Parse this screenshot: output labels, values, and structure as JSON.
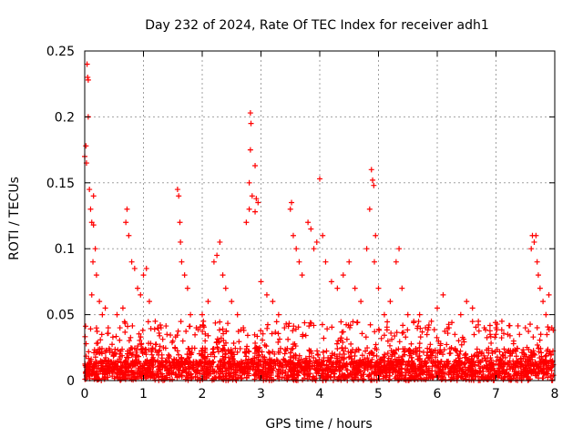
{
  "chart_data": {
    "type": "scatter",
    "title": "Day 232 of 2024, Rate Of TEC Index for receiver adh1",
    "xlabel": "GPS time / hours",
    "ylabel": "ROTI / TECUs",
    "xlim": [
      0,
      8
    ],
    "ylim": [
      0,
      0.25
    ],
    "x_ticks": [
      0,
      1,
      2,
      3,
      4,
      5,
      6,
      7,
      8
    ],
    "x_tick_labels": [
      "0",
      "1",
      "2",
      "3",
      "4",
      "5",
      "6",
      "7",
      "8"
    ],
    "y_ticks": [
      0,
      0.05,
      0.1,
      0.15,
      0.2,
      0.25
    ],
    "y_tick_labels": [
      "0",
      "0.05",
      "0.1",
      "0.15",
      "0.2",
      "0.25"
    ],
    "grid": true,
    "marker": "+",
    "series": [
      {
        "name": "ROTI",
        "color": "#ff0000",
        "description_points": "dense scatter; baseline 0-0.03 TECUs throughout",
        "points": [
          [
            0.0,
            0.17
          ],
          [
            0.02,
            0.178
          ],
          [
            0.04,
            0.24
          ],
          [
            0.05,
            0.23
          ],
          [
            0.06,
            0.228
          ],
          [
            0.06,
            0.2
          ],
          [
            0.03,
            0.165
          ],
          [
            0.08,
            0.145
          ],
          [
            0.1,
            0.13
          ],
          [
            0.12,
            0.12
          ],
          [
            0.15,
            0.14
          ],
          [
            0.15,
            0.118
          ],
          [
            0.18,
            0.1
          ],
          [
            0.14,
            0.09
          ],
          [
            0.12,
            0.065
          ],
          [
            0.2,
            0.08
          ],
          [
            0.25,
            0.06
          ],
          [
            0.3,
            0.05
          ],
          [
            0.35,
            0.055
          ],
          [
            0.4,
            0.04
          ],
          [
            0.55,
            0.05
          ],
          [
            0.6,
            0.04
          ],
          [
            0.65,
            0.055
          ],
          [
            0.7,
            0.12
          ],
          [
            0.72,
            0.13
          ],
          [
            0.75,
            0.11
          ],
          [
            0.8,
            0.09
          ],
          [
            0.85,
            0.085
          ],
          [
            0.9,
            0.07
          ],
          [
            0.95,
            0.065
          ],
          [
            1.0,
            0.08
          ],
          [
            1.05,
            0.085
          ],
          [
            1.1,
            0.06
          ],
          [
            1.2,
            0.045
          ],
          [
            1.3,
            0.04
          ],
          [
            1.4,
            0.035
          ],
          [
            1.5,
            0.03
          ],
          [
            1.58,
            0.145
          ],
          [
            1.6,
            0.14
          ],
          [
            1.62,
            0.12
          ],
          [
            1.63,
            0.105
          ],
          [
            1.65,
            0.09
          ],
          [
            1.7,
            0.08
          ],
          [
            1.75,
            0.07
          ],
          [
            1.8,
            0.05
          ],
          [
            1.9,
            0.04
          ],
          [
            2.0,
            0.05
          ],
          [
            2.1,
            0.06
          ],
          [
            2.2,
            0.09
          ],
          [
            2.25,
            0.095
          ],
          [
            2.3,
            0.105
          ],
          [
            2.35,
            0.08
          ],
          [
            2.4,
            0.07
          ],
          [
            2.5,
            0.06
          ],
          [
            2.6,
            0.05
          ],
          [
            2.7,
            0.04
          ],
          [
            2.75,
            0.12
          ],
          [
            2.8,
            0.13
          ],
          [
            2.82,
            0.203
          ],
          [
            2.83,
            0.195
          ],
          [
            2.82,
            0.175
          ],
          [
            2.8,
            0.15
          ],
          [
            2.85,
            0.14
          ],
          [
            2.9,
            0.163
          ],
          [
            2.92,
            0.138
          ],
          [
            2.95,
            0.135
          ],
          [
            2.9,
            0.128
          ],
          [
            3.0,
            0.075
          ],
          [
            3.1,
            0.065
          ],
          [
            3.2,
            0.06
          ],
          [
            3.3,
            0.05
          ],
          [
            3.4,
            0.04
          ],
          [
            3.5,
            0.13
          ],
          [
            3.52,
            0.135
          ],
          [
            3.55,
            0.11
          ],
          [
            3.6,
            0.1
          ],
          [
            3.65,
            0.09
          ],
          [
            3.7,
            0.08
          ],
          [
            3.8,
            0.12
          ],
          [
            3.85,
            0.115
          ],
          [
            3.9,
            0.1
          ],
          [
            3.95,
            0.105
          ],
          [
            4.0,
            0.153
          ],
          [
            4.05,
            0.11
          ],
          [
            4.1,
            0.09
          ],
          [
            4.2,
            0.075
          ],
          [
            4.3,
            0.07
          ],
          [
            4.4,
            0.08
          ],
          [
            4.5,
            0.09
          ],
          [
            4.6,
            0.07
          ],
          [
            4.7,
            0.06
          ],
          [
            4.8,
            0.1
          ],
          [
            4.85,
            0.13
          ],
          [
            4.88,
            0.16
          ],
          [
            4.9,
            0.152
          ],
          [
            4.92,
            0.148
          ],
          [
            4.95,
            0.11
          ],
          [
            4.93,
            0.09
          ],
          [
            5.0,
            0.07
          ],
          [
            5.1,
            0.05
          ],
          [
            5.2,
            0.06
          ],
          [
            5.3,
            0.09
          ],
          [
            5.35,
            0.1
          ],
          [
            5.4,
            0.07
          ],
          [
            5.5,
            0.05
          ],
          [
            5.6,
            0.045
          ],
          [
            5.7,
            0.05
          ],
          [
            5.8,
            0.04
          ],
          [
            5.9,
            0.045
          ],
          [
            6.0,
            0.055
          ],
          [
            6.1,
            0.065
          ],
          [
            6.2,
            0.04
          ],
          [
            6.3,
            0.035
          ],
          [
            6.4,
            0.05
          ],
          [
            6.5,
            0.06
          ],
          [
            6.6,
            0.055
          ],
          [
            6.7,
            0.045
          ],
          [
            6.8,
            0.04
          ],
          [
            6.9,
            0.035
          ],
          [
            7.0,
            0.04
          ],
          [
            7.1,
            0.045
          ],
          [
            7.2,
            0.035
          ],
          [
            7.3,
            0.03
          ],
          [
            7.4,
            0.035
          ],
          [
            7.5,
            0.04
          ],
          [
            7.6,
            0.1
          ],
          [
            7.62,
            0.11
          ],
          [
            7.65,
            0.105
          ],
          [
            7.68,
            0.11
          ],
          [
            7.7,
            0.09
          ],
          [
            7.72,
            0.08
          ],
          [
            7.75,
            0.07
          ],
          [
            7.8,
            0.06
          ],
          [
            7.85,
            0.05
          ],
          [
            7.9,
            0.065
          ],
          [
            7.95,
            0.04
          ]
        ]
      }
    ]
  }
}
